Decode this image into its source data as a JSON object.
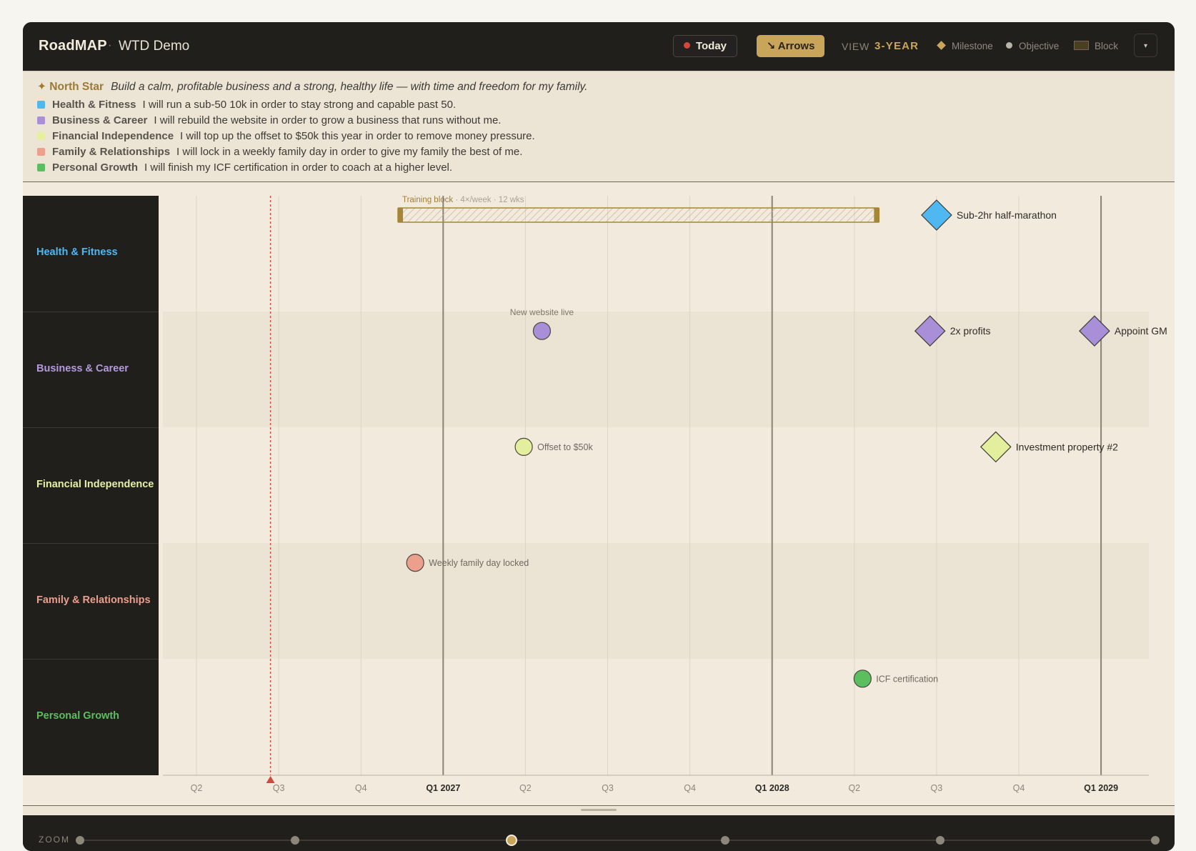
{
  "header": {
    "app_name": "RoadMAP",
    "separator": "·",
    "project": "WTD Demo",
    "today_label": "Today",
    "arrows_label": "↘ Arrows",
    "view_label": "VIEW",
    "view_value": "3-YEAR",
    "legend": {
      "milestone": "Milestone",
      "objective": "Objective",
      "block": "Block"
    },
    "menu_icon": "▾"
  },
  "north_star": {
    "label": "✦ North Star",
    "text": "Build a calm, profitable business and a strong, healthy life — with time and freedom for my family."
  },
  "areas": [
    {
      "name": "Health & Fitness",
      "goal": "I will run a sub-50 10k in order to stay strong and capable past 50.",
      "color": "#4fb8f0"
    },
    {
      "name": "Business & Career",
      "goal": "I will rebuild the website in order to grow a business that runs without me.",
      "color": "#a98fd8"
    },
    {
      "name": "Financial Independence",
      "goal": "I will top up the offset to $50k this year in order to remove money pressure.",
      "color": "#e5ef9e"
    },
    {
      "name": "Family & Relationships",
      "goal": "I will lock in a weekly family day in order to give my family the best of me.",
      "color": "#ec9f8c"
    },
    {
      "name": "Personal Growth",
      "goal": "I will finish my ICF certification in order to coach at a higher level.",
      "color": "#5cbf5f"
    }
  ],
  "lanes": [
    {
      "label": "Health & Fitness",
      "color": "#4fb8f0"
    },
    {
      "label": "Business & Career",
      "color": "#b39ae0"
    },
    {
      "label": "Financial Independence",
      "color": "#e6f0a6"
    },
    {
      "label": "Family & Relationships",
      "color": "#ec9f8c"
    },
    {
      "label": "Personal Growth",
      "color": "#5cbf5f"
    }
  ],
  "axis": {
    "ticks": [
      "Q2",
      "Q3",
      "Q4",
      "Q1 2027",
      "Q2",
      "Q3",
      "Q4",
      "Q1 2028",
      "Q2",
      "Q3",
      "Q4",
      "Q1 2029"
    ],
    "year_ticks": [
      "Q1 2027",
      "Q1 2028",
      "Q1 2029"
    ],
    "today_quarter_fraction": 0.9
  },
  "blocks": [
    {
      "lane": 0,
      "title": "Training block",
      "detail": " · 4×/week · 12 wks",
      "start_q": 2.45,
      "end_q": 8.3,
      "color": "#a58637"
    }
  ],
  "items": [
    {
      "lane": 0,
      "kind": "milestone",
      "q": 9.0,
      "label": "Sub-2hr half-marathon",
      "color": "#4fb8f0",
      "label_pos": "right"
    },
    {
      "lane": 1,
      "kind": "objective",
      "q": 4.2,
      "label": "New website live",
      "color": "#a88fd8",
      "label_pos": "above"
    },
    {
      "lane": 1,
      "kind": "milestone",
      "q": 8.92,
      "label": "2x profits",
      "color": "#a88fd8",
      "label_pos": "right"
    },
    {
      "lane": 1,
      "kind": "milestone",
      "q": 10.92,
      "label": "Appoint GM",
      "color": "#a88fd8",
      "label_pos": "right"
    },
    {
      "lane": 2,
      "kind": "objective",
      "q": 3.98,
      "label": "Offset to $50k",
      "color": "#e3ef9c",
      "label_pos": "right"
    },
    {
      "lane": 2,
      "kind": "milestone",
      "q": 9.72,
      "label": "Investment property #2",
      "color": "#e3ef9c",
      "label_pos": "right"
    },
    {
      "lane": 3,
      "kind": "objective",
      "q": 2.66,
      "label": "Weekly family day locked",
      "color": "#ec9f8c",
      "label_pos": "right"
    },
    {
      "lane": 4,
      "kind": "objective",
      "q": 8.1,
      "label": "ICF certification",
      "color": "#5cbf5f",
      "label_pos": "right"
    }
  ],
  "zoom": {
    "label": "ZOOM",
    "stops": 6,
    "active_index": 2
  }
}
